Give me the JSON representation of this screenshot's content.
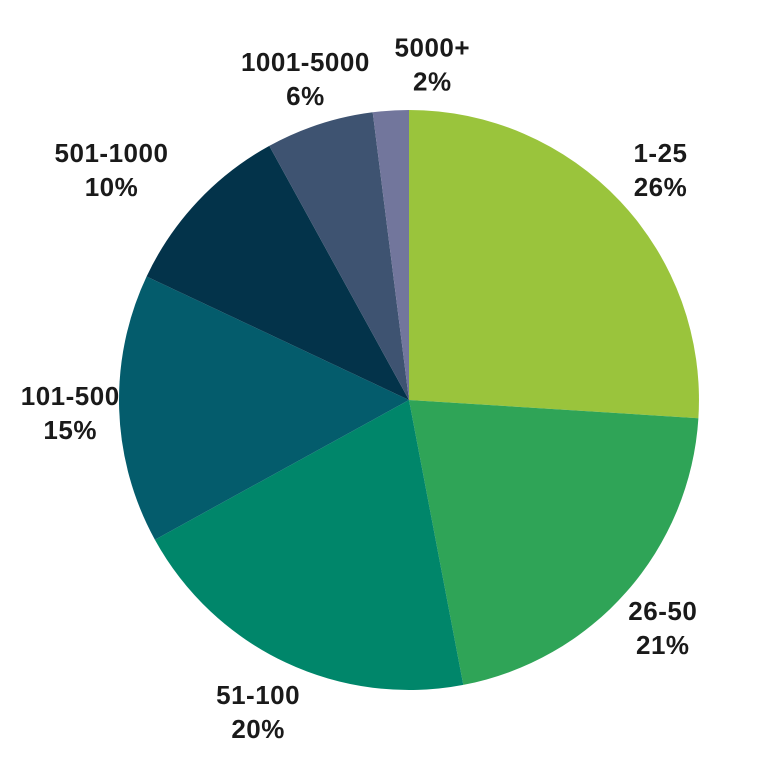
{
  "chart_data": {
    "type": "pie",
    "title": "",
    "unit": "%",
    "slices": [
      {
        "label": "1-25",
        "value": 26,
        "color": "#9ac43c"
      },
      {
        "label": "26-50",
        "value": 21,
        "color": "#2fa457"
      },
      {
        "label": "51-100",
        "value": 20,
        "color": "#00866a"
      },
      {
        "label": "101-500",
        "value": 15,
        "color": "#045c6c"
      },
      {
        "label": "501-1000",
        "value": 10,
        "color": "#03334a"
      },
      {
        "label": "1001-5000",
        "value": 6,
        "color": "#3e5371"
      },
      {
        "label": "5000+",
        "value": 2,
        "color": "#72769c"
      }
    ],
    "start_angle_deg": 0,
    "direction": "clockwise",
    "legend": "none",
    "grid": false,
    "label_style": "outside, two lines: range then percent",
    "label_color": "#1a1a1a",
    "background": "#ffffff"
  }
}
